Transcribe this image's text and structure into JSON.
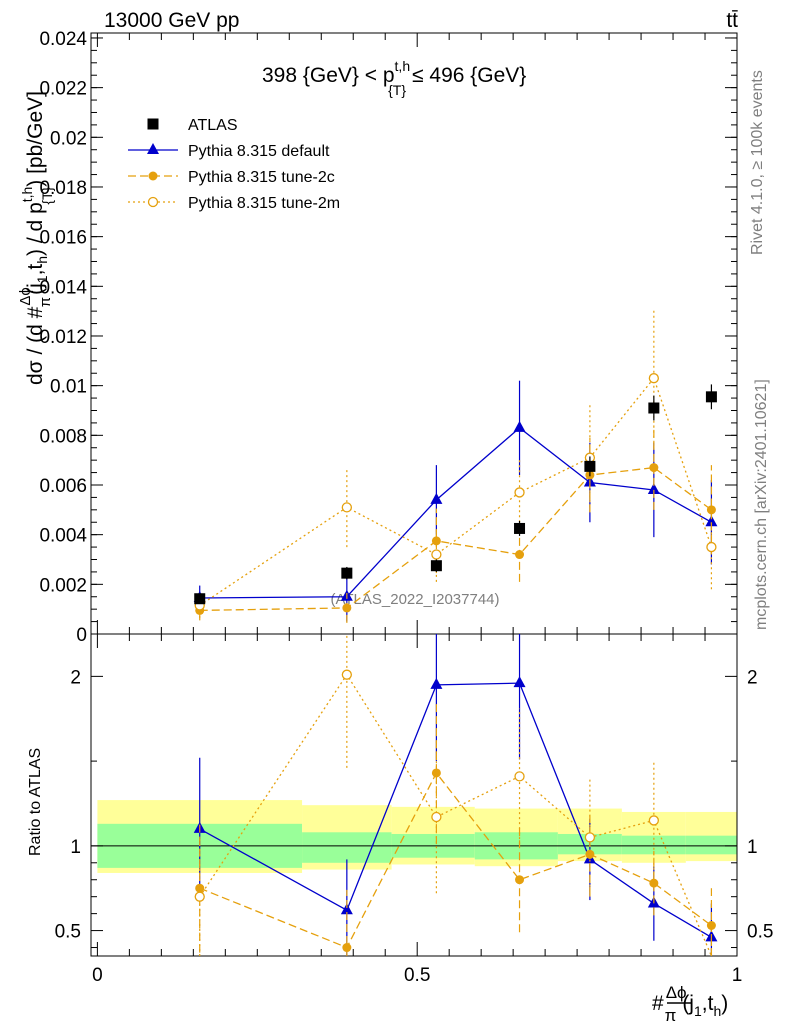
{
  "header": {
    "left": "13000 GeV pp",
    "right": "tt̄"
  },
  "side": {
    "rivet": "Rivet 4.1.0, ≥ 100k events",
    "mcplots": "mcplots.cern.ch [arXiv:2401.10621]"
  },
  "watermark": "(ATLAS_2022_I2037744)",
  "chart_data": {
    "type": "line",
    "title": "398 {GeV} < p^{t,h}_{T} ≤ 496 {GeV}",
    "title_parts": {
      "pre": "398 {GeV} < p",
      "sup": "t,h",
      "sub": "{T}",
      "post": "≤ 496 {GeV}"
    },
    "ylabel_parts": {
      "main": "dσ / (d #",
      "frac_num": "Δϕ",
      "frac_den": "π",
      "mid": "(j",
      "sub1": "1",
      "c": ",t",
      "sub2": "h",
      "p": ") / d p",
      "sup": "t,h",
      "sub3": "{T}",
      "unit": ") [pb/GeV]"
    },
    "xlabel_parts": {
      "hash": "#",
      "frac_num": "Δϕ",
      "frac_den": "π",
      "rest": "(j",
      "sub1": "1",
      "c": ",t",
      "sub2": "h",
      "end": ")"
    },
    "ratio_ylabel": "Ratio to ATLAS",
    "xlim": [
      -0.01,
      1.0
    ],
    "ylim": [
      0,
      0.0242
    ],
    "ratio_ylim": [
      0.35,
      2.25
    ],
    "x_ticks": [
      "0",
      "0.5",
      "1"
    ],
    "x_tick_values": [
      0,
      0.5,
      1
    ],
    "y_ticks": [
      "0",
      "0.002",
      "0.004",
      "0.006",
      "0.008",
      "0.01",
      "0.012",
      "0.014",
      "0.016",
      "0.018",
      "0.02",
      "0.022",
      "0.024"
    ],
    "y_tick_values": [
      0,
      0.002,
      0.004,
      0.006,
      0.008,
      0.01,
      0.012,
      0.014,
      0.016,
      0.018,
      0.02,
      0.022,
      0.024
    ],
    "ratio_ticks": [
      "0.5",
      "1",
      "2"
    ],
    "ratio_tick_values": [
      0.5,
      1,
      2
    ],
    "bins": [
      [
        0.0,
        0.32
      ],
      [
        0.32,
        0.46
      ],
      [
        0.46,
        0.59
      ],
      [
        0.59,
        0.72
      ],
      [
        0.72,
        0.82
      ],
      [
        0.82,
        0.92
      ],
      [
        0.92,
        1.0
      ]
    ],
    "band_inner": [
      [
        0.87,
        1.13
      ],
      [
        0.9,
        1.08
      ],
      [
        0.93,
        1.07
      ],
      [
        0.92,
        1.08
      ],
      [
        0.95,
        1.07
      ],
      [
        0.95,
        1.06
      ],
      [
        0.95,
        1.06
      ]
    ],
    "band_outer": [
      [
        0.84,
        1.27
      ],
      [
        0.86,
        1.24
      ],
      [
        0.89,
        1.23
      ],
      [
        0.88,
        1.22
      ],
      [
        0.91,
        1.22
      ],
      [
        0.9,
        1.2
      ],
      [
        0.91,
        1.2
      ]
    ],
    "x": [
      0.16,
      0.39,
      0.53,
      0.66,
      0.77,
      0.87,
      0.96
    ],
    "data": {
      "name": "ATLAS",
      "y": [
        0.00142,
        0.00245,
        0.00275,
        0.00425,
        0.00675,
        0.0091,
        0.00955
      ],
      "err": [
        0.00018,
        0.00025,
        0.00025,
        0.0003,
        0.0004,
        0.0005,
        0.0005
      ]
    },
    "series": [
      {
        "name": "Pythia 8.315 default",
        "color": "#0000cc",
        "dash": "",
        "marker": "triangle",
        "y": [
          0.00145,
          0.0015,
          0.0054,
          0.0083,
          0.0061,
          0.0058,
          0.0045
        ],
        "err": [
          0.0005,
          0.001,
          0.0014,
          0.0019,
          0.0016,
          0.0019,
          0.0017
        ],
        "ratio": [
          1.1,
          0.62,
          1.95,
          1.96,
          0.92,
          0.66,
          0.46
        ],
        "ratio_err": [
          0.42,
          0.3,
          0.45,
          0.45,
          0.24,
          0.22,
          0.2
        ]
      },
      {
        "name": "Pythia 8.315 tune-2c",
        "color": "#e5a00d",
        "dash": "8,4",
        "marker": "circle",
        "y": [
          0.00095,
          0.00105,
          0.00375,
          0.0032,
          0.0064,
          0.0067,
          0.005
        ],
        "err": [
          0.0004,
          0.0006,
          0.0013,
          0.0011,
          0.0015,
          0.0017,
          0.0018
        ],
        "ratio": [
          0.75,
          0.4,
          1.43,
          0.8,
          0.95,
          0.78,
          0.53
        ],
        "ratio_err": [
          0.38,
          0.34,
          0.42,
          0.31,
          0.24,
          0.19,
          0.22
        ]
      },
      {
        "name": "Pythia 8.315 tune-2m",
        "color": "#e5a00d",
        "dash": "2,3",
        "marker": "open-circle",
        "y": [
          0.00115,
          0.0051,
          0.0032,
          0.0057,
          0.0071,
          0.0103,
          0.0035
        ],
        "err": [
          0.0005,
          0.0016,
          0.0011,
          0.0014,
          0.0022,
          0.0028,
          0.0017
        ],
        "ratio": [
          0.7,
          2.01,
          1.17,
          1.41,
          1.05,
          1.15,
          0.25
        ],
        "ratio_err": [
          0.35,
          0.55,
          0.45,
          0.4,
          0.35,
          0.35,
          0.3
        ]
      }
    ]
  }
}
